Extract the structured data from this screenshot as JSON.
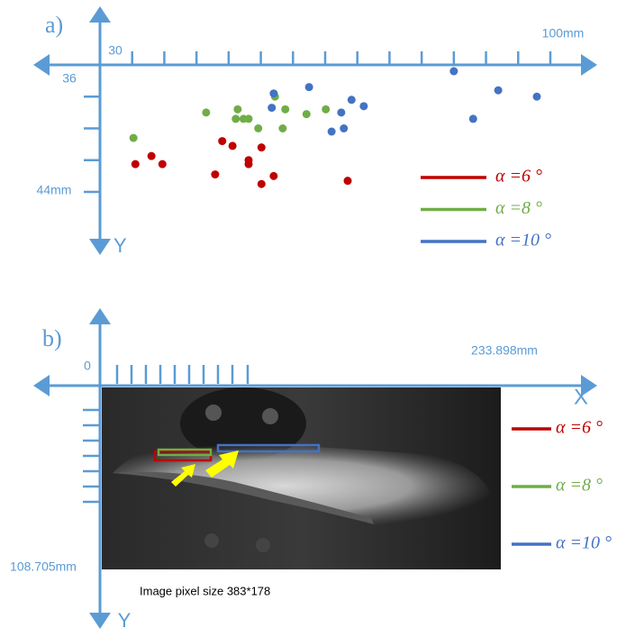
{
  "chart_data": {
    "type": "scatter",
    "title": "a)",
    "y_axis_label": "Y",
    "y_axis_down": true,
    "xlim": [
      30,
      100
    ],
    "xticks": [
      30,
      {
        "value": 100,
        "label": "100mm"
      }
    ],
    "xticks_minor": [
      35,
      40,
      45,
      50,
      55,
      60,
      65,
      70,
      75,
      80,
      85,
      90,
      95
    ],
    "ylim": [
      36,
      44
    ],
    "yticks": [
      36,
      {
        "value": 44,
        "label": "44mm"
      }
    ],
    "yticks_minor": [
      38,
      40,
      42
    ],
    "legend": "right",
    "series": [
      {
        "name": "α =6 °",
        "color": "#c00000",
        "x": [
          35.5,
          38.0,
          39.7,
          47.9,
          49.0,
          50.6,
          53.1,
          53.1,
          55.1,
          55.1,
          57.0,
          68.5
        ],
        "values": [
          42.25,
          41.74,
          42.25,
          42.9,
          40.8,
          41.1,
          42.0,
          42.25,
          41.2,
          43.5,
          43.0,
          43.3
        ]
      },
      {
        "name": "α =8 °",
        "color": "#70ad47",
        "x": [
          35.2,
          46.5,
          51.4,
          51.1,
          52.3,
          53.1,
          54.6,
          57.2,
          58.8,
          58.4,
          62.1,
          65.1
        ],
        "values": [
          40.6,
          39.0,
          38.8,
          39.4,
          39.4,
          39.4,
          40.0,
          38.0,
          38.8,
          40.0,
          39.1,
          38.8
        ]
      },
      {
        "name": "α =10 °",
        "color": "#4472c4",
        "x": [
          57.0,
          56.7,
          62.5,
          67.5,
          69.1,
          71.0,
          66.0,
          67.9,
          85.0,
          88.0,
          91.9,
          97.9
        ],
        "values": [
          37.8,
          38.7,
          37.4,
          39.0,
          38.2,
          38.6,
          40.2,
          40.0,
          36.4,
          39.4,
          37.6,
          38.0
        ]
      }
    ]
  },
  "panel_b": {
    "title": "b)",
    "x_axis_label": "X",
    "y_axis_label": "Y",
    "x_start": "0",
    "x_end": "233.898mm",
    "y_end": "108.705mm",
    "caption": "Image pixel size 383*178",
    "legend": [
      "α =6 °",
      "α =8 °",
      "α =10 °"
    ]
  }
}
